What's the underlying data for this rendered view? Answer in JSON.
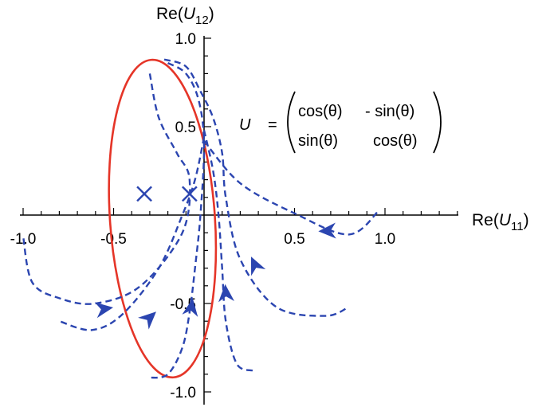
{
  "chart_data": {
    "type": "line",
    "xlabel_prefix": "Re(",
    "xlabel_var": "U",
    "xlabel_sub": "11",
    "xlabel_suffix": ")",
    "ylabel_prefix": "Re(",
    "ylabel_var": "U",
    "ylabel_sub": "12",
    "ylabel_suffix": ")",
    "xlim": [
      -1.0,
      1.4
    ],
    "ylim": [
      -1.0,
      1.0
    ],
    "x_ticks": [
      -1.0,
      -0.5,
      0.5,
      1.0
    ],
    "x_tick_labels": [
      "-1.0",
      "-0.5",
      "0.5",
      "1.0"
    ],
    "y_ticks": [
      1.0,
      0.5,
      -0.5,
      -1.0
    ],
    "y_tick_labels": [
      "1.0",
      "0.5",
      "-0.5",
      "-1.0"
    ],
    "grid": false,
    "colors": {
      "ellipse": "#e53528",
      "trajectory": "#2b45b0",
      "marker": "#2b45b0"
    },
    "ellipse": {
      "center": [
        -0.23,
        -0.02
      ],
      "x_half_axis": 0.29,
      "y_half_axis": 0.9,
      "rotation_deg": -4
    },
    "markers": [
      {
        "x": -0.33,
        "y": 0.12
      },
      {
        "x": -0.08,
        "y": 0.12
      }
    ],
    "series": [
      {
        "points": [
          [
            0.0,
            0.42
          ],
          [
            0.2,
            0.18
          ],
          [
            0.5,
            0.01
          ],
          [
            0.8,
            -0.11
          ],
          [
            0.97,
            0.03
          ]
        ],
        "arrow": [
          0.68,
          -0.09
        ]
      },
      {
        "points": [
          [
            -0.22,
            0.88
          ],
          [
            -0.1,
            0.84
          ],
          [
            -0.02,
            0.7
          ],
          [
            0.05,
            0.55
          ],
          [
            0.1,
            0.35
          ],
          [
            0.12,
            0.1
          ],
          [
            0.2,
            -0.25
          ],
          [
            0.4,
            -0.52
          ],
          [
            0.67,
            -0.57
          ],
          [
            0.8,
            -0.52
          ]
        ],
        "arrow": [
          0.28,
          -0.28
        ]
      },
      {
        "points": [
          [
            0.0,
            0.48
          ],
          [
            0.05,
            0.25
          ],
          [
            0.08,
            0.0
          ],
          [
            0.1,
            -0.3
          ],
          [
            0.12,
            -0.6
          ],
          [
            0.18,
            -0.84
          ],
          [
            0.27,
            -0.88
          ]
        ],
        "arrow": [
          0.12,
          -0.44
        ]
      },
      {
        "points": [
          [
            -0.2,
            0.86
          ],
          [
            -0.1,
            0.8
          ],
          [
            -0.03,
            0.65
          ],
          [
            0.0,
            0.4
          ],
          [
            -0.02,
            0.0
          ],
          [
            -0.05,
            -0.3
          ],
          [
            -0.08,
            -0.55
          ],
          [
            -0.12,
            -0.75
          ],
          [
            -0.2,
            -0.9
          ],
          [
            -0.3,
            -0.92
          ]
        ],
        "arrow": [
          -0.07,
          -0.52
        ]
      },
      {
        "points": [
          [
            0.0,
            0.44
          ],
          [
            -0.05,
            0.2
          ],
          [
            -0.12,
            0.0
          ],
          [
            -0.25,
            -0.3
          ],
          [
            -0.45,
            -0.56
          ],
          [
            -0.62,
            -0.65
          ],
          [
            -0.8,
            -0.6
          ]
        ],
        "arrow": [
          -0.3,
          -0.58
        ]
      },
      {
        "points": [
          [
            -0.3,
            0.8
          ],
          [
            -0.25,
            0.55
          ],
          [
            -0.15,
            0.35
          ],
          [
            -0.08,
            0.2
          ],
          [
            -0.12,
            -0.1
          ],
          [
            -0.35,
            -0.4
          ],
          [
            -0.6,
            -0.5
          ],
          [
            -0.8,
            -0.47
          ],
          [
            -0.95,
            -0.38
          ],
          [
            -1.0,
            -0.12
          ]
        ],
        "arrow": [
          -0.55,
          -0.53
        ]
      }
    ]
  },
  "matrix": {
    "lhs": "U",
    "equals": "=",
    "r1c1": "cos(θ)",
    "r1c2": "- sin(θ)",
    "r2c1": "sin(θ)",
    "r2c2": "cos(θ)"
  }
}
